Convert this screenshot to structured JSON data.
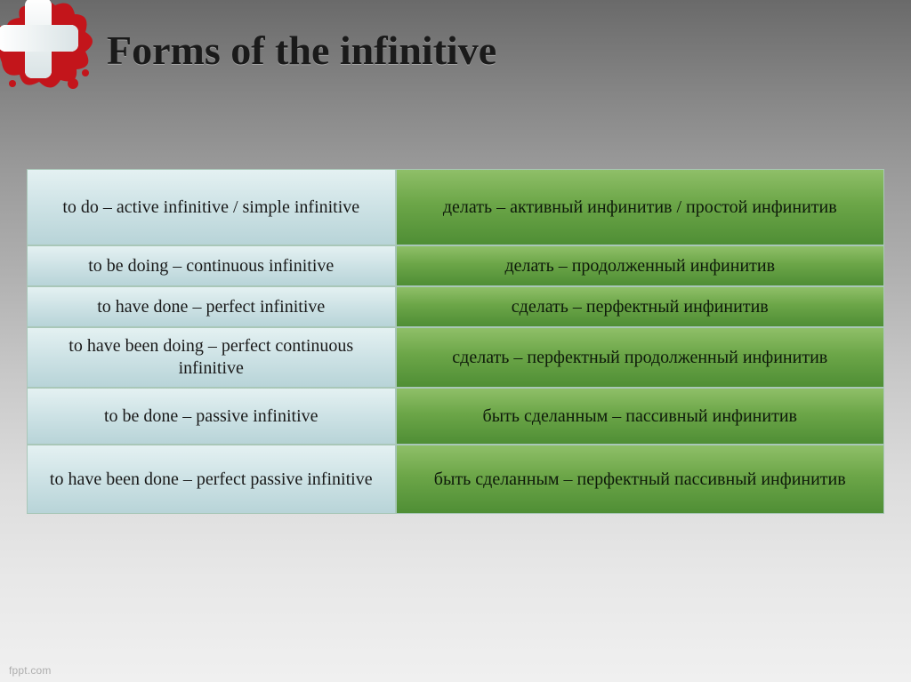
{
  "title": "Forms of the infinitive",
  "watermark": "fppt.com",
  "logo": {
    "cross_bg": "#ffffff",
    "cross_border_radius": 10,
    "splat_color": "#c3151b"
  },
  "table": {
    "left_bg_gradient": [
      "#e4f1f2",
      "#cde2e5",
      "#b8d4d8"
    ],
    "right_bg_gradient": [
      "#8fbf68",
      "#6ca648",
      "#4f8e35"
    ],
    "border_color": "#a9c7b8",
    "font_size_pt": 15,
    "font_family": "Times New Roman",
    "rows": [
      {
        "left": "to do – active infinitive / simple infinitive",
        "right": "делать – активный инфинитив / простой инфинитив",
        "height_class": "h-tall"
      },
      {
        "left": "to be doing – continuous infinitive",
        "right": "делать – продолженный инфинитив",
        "height_class": "h-sm"
      },
      {
        "left": "to have done – perfect infinitive",
        "right": "сделать – перфектный инфинитив",
        "height_class": "h-sm"
      },
      {
        "left": "to have been doing – perfect continuous infinitive",
        "right": "сделать – перфектный продолженный инфинитив",
        "height_class": "h-med"
      },
      {
        "left": "to be done – passive infinitive",
        "right": "быть сделанным – пассивный инфинитив",
        "height_class": "h-med"
      },
      {
        "left": "to have been done – perfect passive infinitive",
        "right": "быть сделанным – перфектный пассивный инфинитив",
        "height_class": "h-lg"
      }
    ]
  }
}
